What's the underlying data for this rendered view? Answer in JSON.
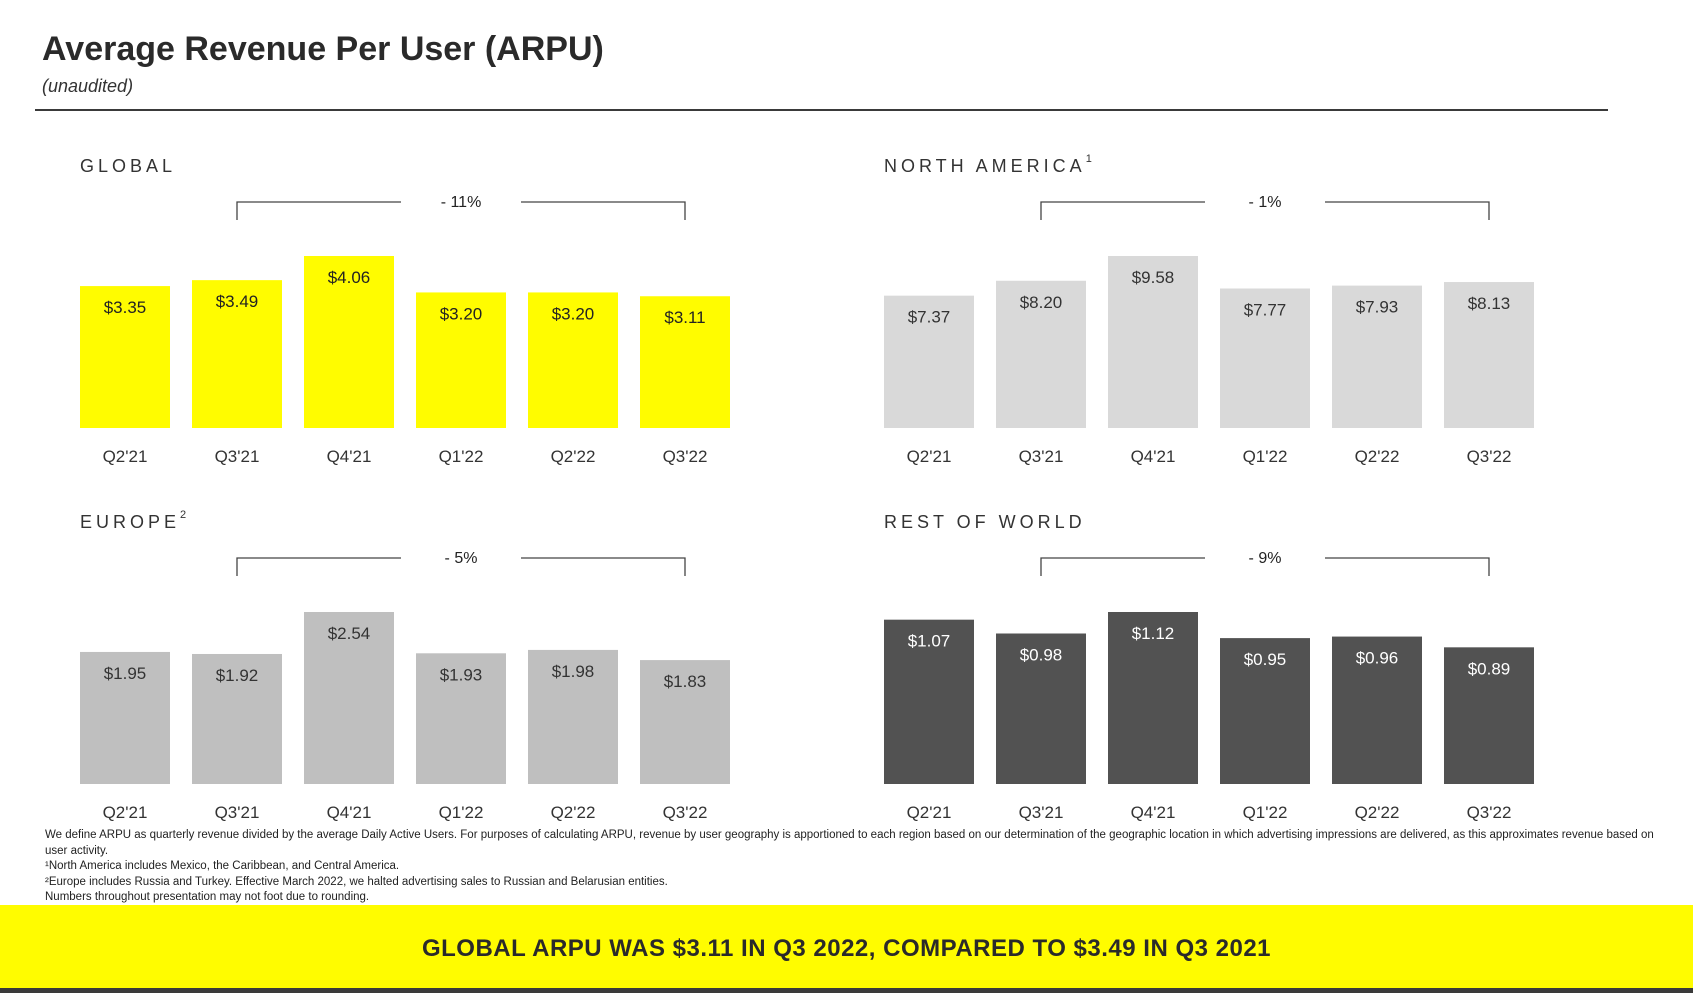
{
  "header": {
    "title": "Average Revenue Per User (ARPU)",
    "subtitle": "(unaudited)"
  },
  "chart_data": [
    {
      "type": "bar",
      "title": "GLOBAL",
      "footnote_mark": "",
      "change_label": "- 11%",
      "categories": [
        "Q2'21",
        "Q3'21",
        "Q4'21",
        "Q1'22",
        "Q2'22",
        "Q3'22"
      ],
      "values": [
        3.35,
        3.49,
        4.06,
        3.2,
        3.2,
        3.11
      ],
      "labels": [
        "$3.35",
        "$3.49",
        "$4.06",
        "$3.20",
        "$3.20",
        "$3.11"
      ],
      "color": "#FFFC00",
      "label_color": "#222222"
    },
    {
      "type": "bar",
      "title": "NORTH AMERICA",
      "footnote_mark": "1",
      "change_label": "- 1%",
      "categories": [
        "Q2'21",
        "Q3'21",
        "Q4'21",
        "Q1'22",
        "Q2'22",
        "Q3'22"
      ],
      "values": [
        7.37,
        8.2,
        9.58,
        7.77,
        7.93,
        8.13
      ],
      "labels": [
        "$7.37",
        "$8.20",
        "$9.58",
        "$7.77",
        "$7.93",
        "$8.13"
      ],
      "color": "#D9D9D9",
      "label_color": "#333333"
    },
    {
      "type": "bar",
      "title": "EUROPE",
      "footnote_mark": "2",
      "change_label": "- 5%",
      "categories": [
        "Q2'21",
        "Q3'21",
        "Q4'21",
        "Q1'22",
        "Q2'22",
        "Q3'22"
      ],
      "values": [
        1.95,
        1.92,
        2.54,
        1.93,
        1.98,
        1.83
      ],
      "labels": [
        "$1.95",
        "$1.92",
        "$2.54",
        "$1.93",
        "$1.98",
        "$1.83"
      ],
      "color": "#BFBFBF",
      "label_color": "#333333"
    },
    {
      "type": "bar",
      "title": "REST OF WORLD",
      "footnote_mark": "",
      "change_label": "- 9%",
      "categories": [
        "Q2'21",
        "Q3'21",
        "Q4'21",
        "Q1'22",
        "Q2'22",
        "Q3'22"
      ],
      "values": [
        1.07,
        0.98,
        1.12,
        0.95,
        0.96,
        0.89
      ],
      "labels": [
        "$1.07",
        "$0.98",
        "$1.12",
        "$0.95",
        "$0.96",
        "$0.89"
      ],
      "color": "#525252",
      "label_color": "#FFFFFF"
    }
  ],
  "notes": [
    "We define ARPU as quarterly revenue divided by the average Daily Active Users. For purposes of calculating ARPU, revenue by user geography is apportioned to each region based on our determination of the geographic location in which advertising impressions are delivered, as this approximates revenue based on user activity.",
    "¹North America includes Mexico, the Caribbean, and Central America.",
    "²Europe includes Russia and Turkey. Effective March 2022, we halted advertising sales to Russian and Belarusian entities.",
    "Numbers throughout presentation may not foot due to rounding."
  ],
  "banner": {
    "text": "GLOBAL ARPU WAS $3.11 IN Q3 2022, COMPARED TO $3.49 IN Q3 2021"
  }
}
